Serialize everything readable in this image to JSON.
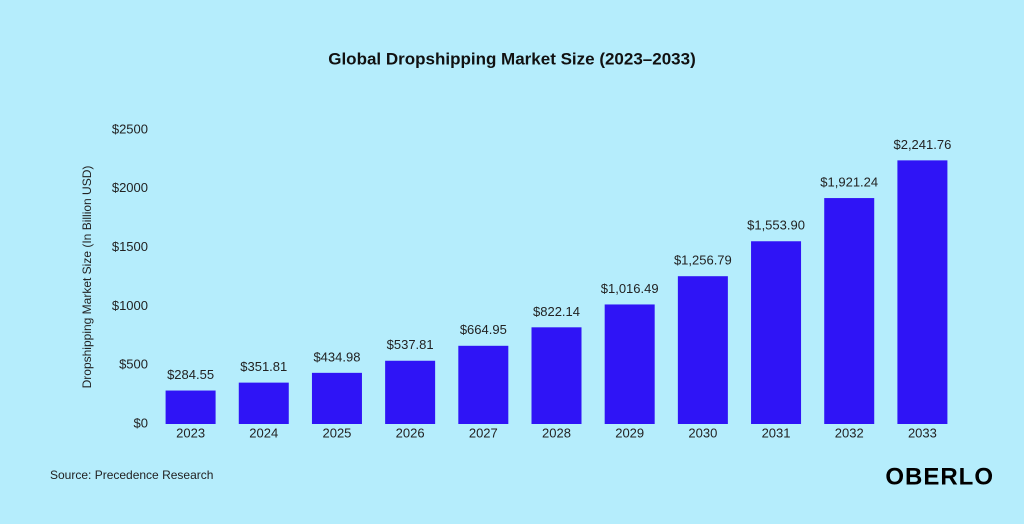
{
  "chart_data": {
    "type": "bar",
    "title": "Global Dropshipping Market Size (2023–2033)",
    "y_label": "Dropshipping Market Size (In Billion USD)",
    "source": "Source: Precedence Research",
    "brand": "OBERLO",
    "categories": [
      "2023",
      "2024",
      "2025",
      "2026",
      "2027",
      "2028",
      "2029",
      "2030",
      "2031",
      "2032",
      "2033"
    ],
    "values": [
      284.55,
      351.81,
      434.98,
      537.81,
      664.95,
      822.14,
      1016.49,
      1256.79,
      1553.9,
      1921.24,
      2241.76
    ],
    "value_labels": [
      "$284.55",
      "$351.81",
      "$434.98",
      "$537.81",
      "$664.95",
      "$822.14",
      "$1,016.49",
      "$1,256.79",
      "$1,553.90",
      "$1,921.24",
      "$2,241.76"
    ],
    "color": "#2f14f6",
    "ylim": [
      0,
      2500
    ],
    "yticks": [
      {
        "value": 0,
        "label": "$0"
      },
      {
        "value": 500,
        "label": "$500"
      },
      {
        "value": 1000,
        "label": "$1000"
      },
      {
        "value": 1500,
        "label": "$1500"
      },
      {
        "value": 2000,
        "label": "$2000"
      },
      {
        "value": 2500,
        "label": "$2500"
      }
    ],
    "grid": false
  }
}
